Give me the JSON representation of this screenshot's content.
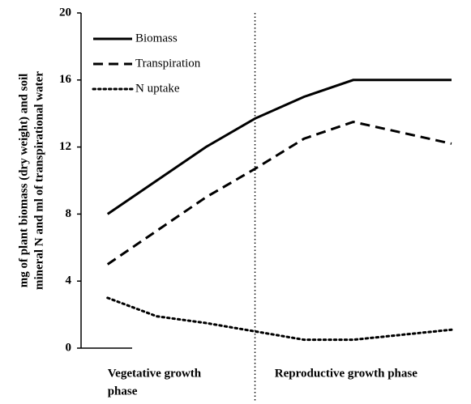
{
  "chart_data": {
    "type": "line",
    "ylabel": [
      "mg of plant biomass (dry weight) and soil",
      "mineral N and ml of transpirational water"
    ],
    "ylim": [
      0,
      20
    ],
    "yticks": [
      0,
      4,
      8,
      12,
      16,
      20
    ],
    "xlim": [
      -0.54,
      7.05
    ],
    "legend": "upper left",
    "phase_boundary": 3,
    "phases": [
      {
        "label": [
          "Vegetative growth",
          "phase"
        ],
        "x": 0
      },
      {
        "label": [
          "Reproductive growth phase"
        ],
        "x": 3.4
      }
    ],
    "series": [
      {
        "name": "Biomass",
        "color": "#000000",
        "dash": "solid",
        "x": [
          0,
          2,
          3,
          4,
          5,
          7
        ],
        "values": [
          8,
          12,
          13.7,
          15,
          16,
          16
        ]
      },
      {
        "name": "Transpiration",
        "color": "#000000",
        "dash": "dashed",
        "x": [
          0,
          2,
          3,
          4,
          5,
          7
        ],
        "values": [
          5,
          9,
          10.7,
          12.5,
          13.5,
          12.2
        ]
      },
      {
        "name": "N uptake",
        "color": "#000000",
        "dash": "dotted",
        "x": [
          0,
          1,
          2,
          3,
          4,
          5,
          7
        ],
        "values": [
          3,
          1.9,
          1.5,
          1,
          0.5,
          0.5,
          1.1
        ]
      }
    ]
  }
}
